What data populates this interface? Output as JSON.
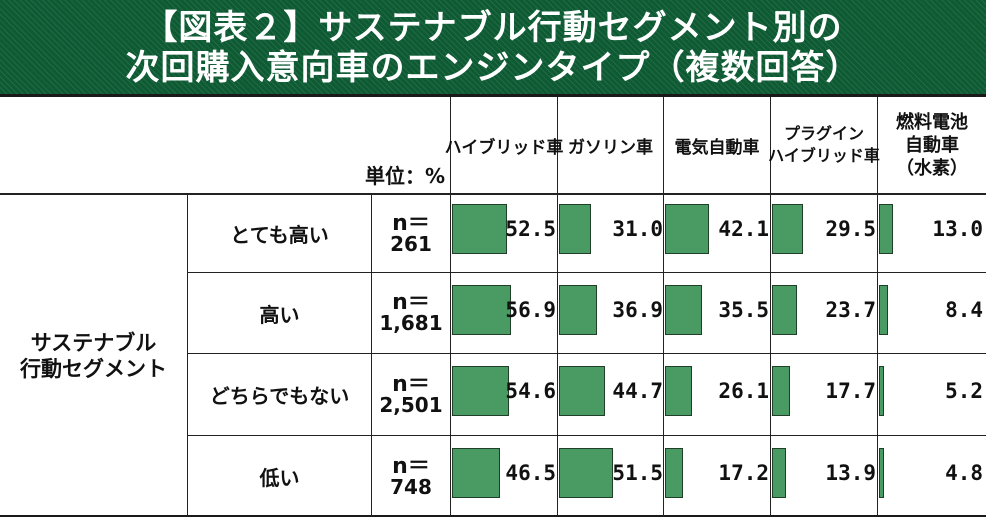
{
  "title": {
    "line1": "【図表２】サステナブル行動セグメント別の",
    "line2": "次回購入意向車のエンジンタイプ（複数回答）"
  },
  "unit_label": "単位：%",
  "segment_label": [
    "サステナブル",
    "行動セグメント"
  ],
  "columns": [
    {
      "lines": [
        "ハイブリッド車"
      ]
    },
    {
      "lines": [
        "ガソリン車"
      ]
    },
    {
      "lines": [
        "電気自動車"
      ]
    },
    {
      "lines": [
        "プラグイン",
        "ハイブリッド車"
      ]
    },
    {
      "lines": [
        "燃料電池",
        "自動車",
        "（水素）"
      ]
    }
  ],
  "rows": [
    {
      "label": "とても高い",
      "n_top": "n＝",
      "n_value": "261"
    },
    {
      "label": "高い",
      "n_top": "n＝",
      "n_value": "1,681"
    },
    {
      "label": "どちらでもない",
      "n_top": "n＝",
      "n_value": "2,501"
    },
    {
      "label": "低い",
      "n_top": "n＝",
      "n_value": "748"
    }
  ],
  "colors": {
    "title_bg": "#0d5a33",
    "bar_fill": "#4a9a63",
    "bar_border": "#1f3f28"
  },
  "chart_data": {
    "type": "bar",
    "orientation": "horizontal",
    "title": "【図表２】サステナブル行動セグメント別の次回購入意向車のエンジンタイプ（複数回答）",
    "unit": "%",
    "categories": [
      "とても高い",
      "高い",
      "どちらでもない",
      "低い"
    ],
    "series": [
      {
        "name": "ハイブリッド車",
        "values": [
          52.5,
          56.9,
          54.6,
          46.5
        ]
      },
      {
        "name": "ガソリン車",
        "values": [
          31.0,
          36.9,
          44.7,
          51.5
        ]
      },
      {
        "name": "電気自動車",
        "values": [
          42.1,
          35.5,
          26.1,
          17.2
        ]
      },
      {
        "name": "プラグインハイブリッド車",
        "values": [
          29.5,
          23.7,
          17.7,
          13.9
        ]
      },
      {
        "name": "燃料電池自動車（水素）",
        "values": [
          13.0,
          8.4,
          5.2,
          4.8
        ]
      }
    ],
    "value_labels": [
      [
        "52.5",
        "56.9",
        "54.6",
        "46.5"
      ],
      [
        "31.0",
        "36.9",
        "44.7",
        "51.5"
      ],
      [
        "42.1",
        "35.5",
        "26.1",
        "17.2"
      ],
      [
        "29.5",
        "23.7",
        "17.7",
        "13.9"
      ],
      [
        "13.0",
        "8.4",
        "5.2",
        "4.8"
      ]
    ],
    "xlim": [
      0,
      100
    ]
  }
}
